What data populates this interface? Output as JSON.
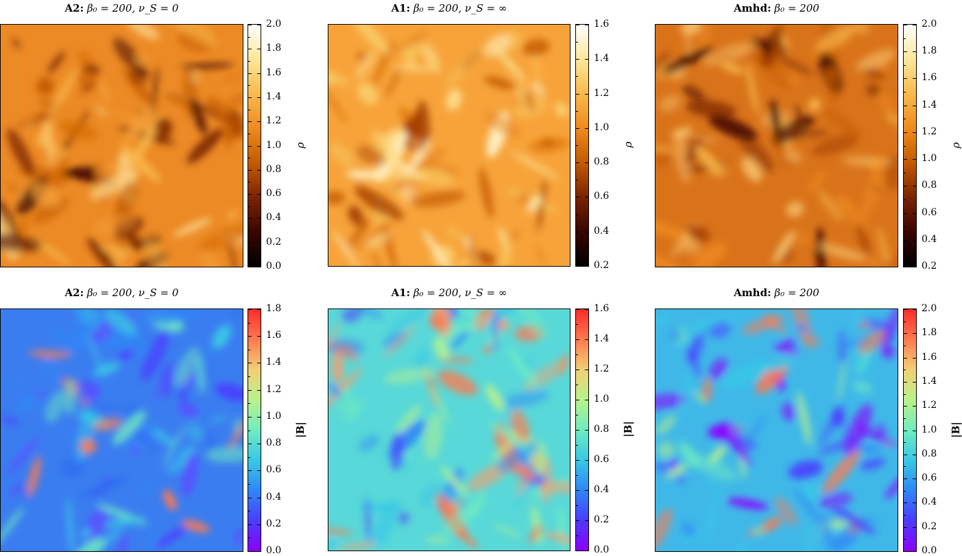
{
  "colors": {
    "afmhot_stops": [
      "#000000",
      "#3a0600",
      "#7a2400",
      "#c45a00",
      "#ef8a1e",
      "#f9b94c",
      "#fde79a",
      "#ffffff"
    ],
    "rainbow_stops": [
      "#8b00ff",
      "#4b3cff",
      "#2f86f6",
      "#38c8e6",
      "#6fecc0",
      "#b9f28c",
      "#f2cf74",
      "#ff7a50",
      "#ff2a2a"
    ]
  },
  "chart_data": [
    {
      "type": "heatmap",
      "title_bold": "A2:",
      "title_rest": "β₀ = 200, ν_S = 0",
      "colorbar_label": "ρ",
      "colormap": "afmhot",
      "clim": [
        0.0,
        2.0
      ],
      "ticks": [
        "0.0",
        "0.2",
        "0.4",
        "0.6",
        "0.8",
        "1.0",
        "1.2",
        "1.4",
        "1.6",
        "1.8",
        "2.0"
      ]
    },
    {
      "type": "heatmap",
      "title_bold": "A1:",
      "title_rest": "β₀ = 200, ν_S = ∞",
      "colorbar_label": "ρ",
      "colormap": "afmhot",
      "clim": [
        0.2,
        1.6
      ],
      "ticks": [
        "0.2",
        "0.4",
        "0.6",
        "0.8",
        "1.0",
        "1.2",
        "1.4",
        "1.6"
      ]
    },
    {
      "type": "heatmap",
      "title_bold": "Amhd:",
      "title_rest": "β₀ = 200",
      "colorbar_label": "ρ",
      "colormap": "afmhot",
      "clim": [
        0.2,
        2.0
      ],
      "ticks": [
        "0.2",
        "0.4",
        "0.6",
        "0.8",
        "1.0",
        "1.2",
        "1.4",
        "1.6",
        "1.8",
        "2.0"
      ]
    },
    {
      "type": "heatmap",
      "title_bold": "A2:",
      "title_rest": "β₀ = 200, ν_S = 0",
      "colorbar_label": "|B|",
      "colormap": "rainbow",
      "clim": [
        0.0,
        1.8
      ],
      "ticks": [
        "0.0",
        "0.2",
        "0.4",
        "0.6",
        "0.8",
        "1.0",
        "1.2",
        "1.4",
        "1.6",
        "1.8"
      ]
    },
    {
      "type": "heatmap",
      "title_bold": "A1:",
      "title_rest": "β₀ = 200, ν_S = ∞",
      "colorbar_label": "|B|",
      "colormap": "rainbow",
      "clim": [
        0.0,
        1.6
      ],
      "ticks": [
        "0.0",
        "0.2",
        "0.4",
        "0.6",
        "0.8",
        "1.0",
        "1.2",
        "1.4",
        "1.6"
      ]
    },
    {
      "type": "heatmap",
      "title_bold": "Amhd:",
      "title_rest": "β₀ = 200",
      "colorbar_label": "|B|",
      "colormap": "rainbow",
      "clim": [
        0.0,
        2.0
      ],
      "ticks": [
        "0.0",
        "0.2",
        "0.4",
        "0.6",
        "0.8",
        "1.0",
        "1.2",
        "1.4",
        "1.6",
        "1.8",
        "2.0"
      ]
    }
  ]
}
